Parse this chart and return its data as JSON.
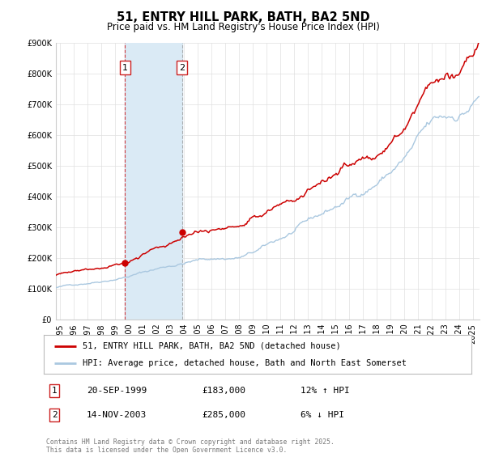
{
  "title": "51, ENTRY HILL PARK, BATH, BA2 5ND",
  "subtitle": "Price paid vs. HM Land Registry's House Price Index (HPI)",
  "ylim": [
    0,
    900000
  ],
  "yticks": [
    0,
    100000,
    200000,
    300000,
    400000,
    500000,
    600000,
    700000,
    800000,
    900000
  ],
  "ytick_labels": [
    "£0",
    "£100K",
    "£200K",
    "£300K",
    "£400K",
    "£500K",
    "£600K",
    "£700K",
    "£800K",
    "£900K"
  ],
  "xlim_start": 1994.7,
  "xlim_end": 2025.5,
  "sale1_date": 1999.72,
  "sale1_price": 183000,
  "sale2_date": 2003.87,
  "sale2_price": 285000,
  "sale1_date_str": "20-SEP-1999",
  "sale1_price_str": "£183,000",
  "sale1_hpi_str": "12% ↑ HPI",
  "sale2_date_str": "14-NOV-2003",
  "sale2_price_str": "£285,000",
  "sale2_hpi_str": "6% ↓ HPI",
  "hpi_line_color": "#aac8e0",
  "price_line_color": "#cc0000",
  "sale_dot_color": "#cc0000",
  "shaded_region_color": "#daeaf5",
  "legend1_label": "51, ENTRY HILL PARK, BATH, BA2 5ND (detached house)",
  "legend2_label": "HPI: Average price, detached house, Bath and North East Somerset",
  "footer": "Contains HM Land Registry data © Crown copyright and database right 2025.\nThis data is licensed under the Open Government Licence v3.0.",
  "background_color": "#ffffff",
  "grid_color": "#e0e0e0",
  "title_fontsize": 10.5,
  "subtitle_fontsize": 8.5,
  "tick_fontsize": 7,
  "label_fontsize": 8
}
